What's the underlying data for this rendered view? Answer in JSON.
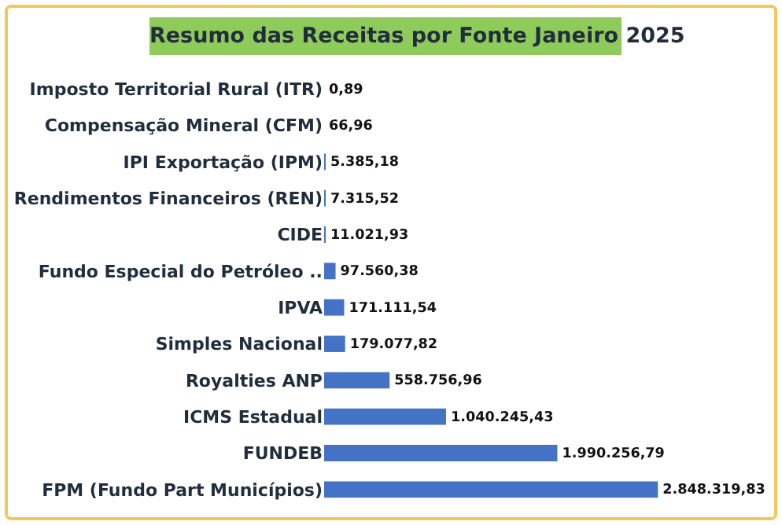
{
  "chart_data": {
    "type": "bar",
    "orientation": "horizontal",
    "title": "Resumo das Receitas por Fonte Janeiro 2025",
    "categories": [
      "Imposto Territorial Rural (ITR)",
      "Compensação Mineral (CFM)",
      "IPI Exportação (IPM)",
      "Rendimentos Financeiros (REN)",
      "CIDE",
      "Fundo Especial do Petróleo ..",
      "IPVA",
      "Simples Nacional",
      "Royalties ANP",
      "ICMS Estadual",
      "FUNDEB",
      "FPM (Fundo Part Municípios)"
    ],
    "values": [
      0.89,
      66.96,
      5385.18,
      7315.52,
      11021.93,
      97560.38,
      171111.54,
      179077.82,
      558756.96,
      1040245.43,
      1990256.79,
      2848319.83
    ],
    "value_labels": [
      "0,89",
      "66,96",
      "5.385,18",
      "7.315,52",
      "11.021,93",
      "97.560,38",
      "171.111,54",
      "179.077,82",
      "558.756,96",
      "1.040.245,43",
      "1.990.256,79",
      "2.848.319,83"
    ],
    "color": "#4472c4",
    "grid": false,
    "legend": false
  }
}
